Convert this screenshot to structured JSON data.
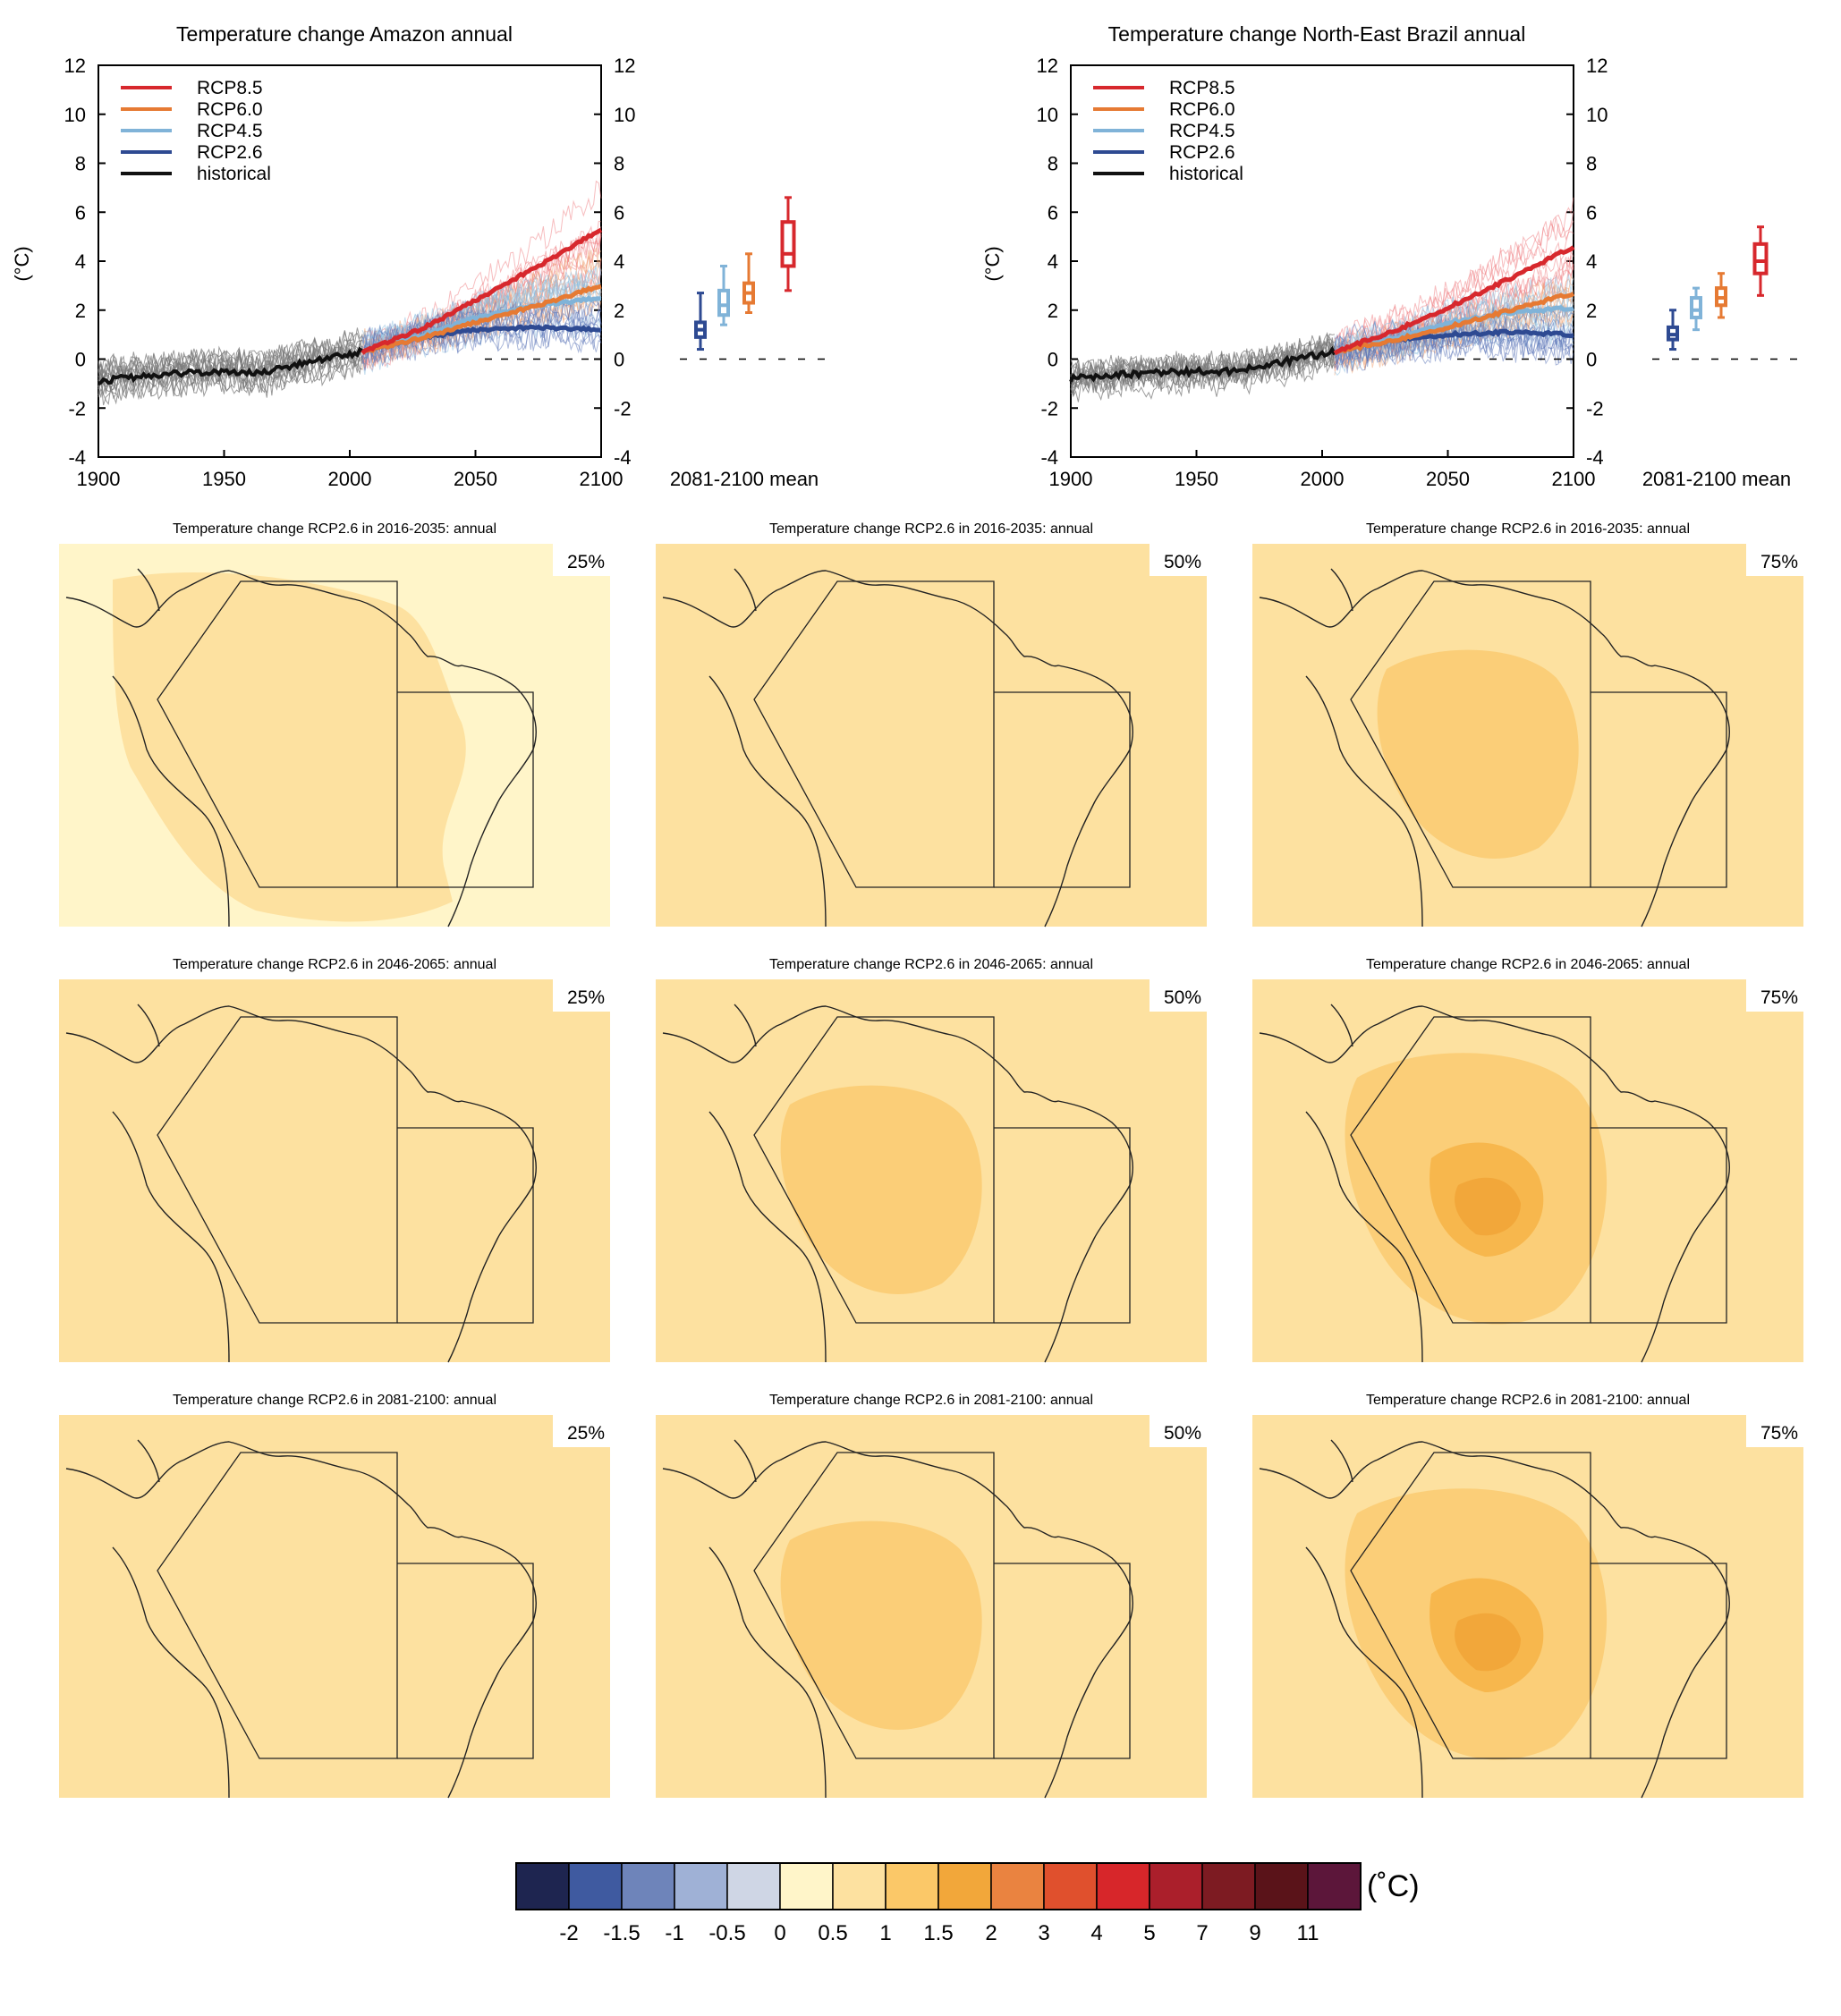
{
  "colors": {
    "rcp85": "#d7282d",
    "rcp60": "#e67a33",
    "rcp45": "#80b3d8",
    "rcp26": "#2e4a92",
    "historical": "#111111",
    "ensemble_hist": "#7a7a7a",
    "ocean_light": "#fff5c9",
    "land_light": "#fde1a0",
    "mid": "#fbce78",
    "high": "#f7b74d",
    "higher": "#f2a73a"
  },
  "panels": [
    {
      "title": "Temperature change Amazon annual",
      "ylabel": "(°C)",
      "yticks": [
        12,
        10,
        8,
        6,
        4,
        2,
        0,
        -2,
        -4
      ],
      "xticks": [
        1900,
        1950,
        2000,
        2050,
        2100
      ],
      "boxlabel": "2081-2100 mean",
      "legend": [
        "RCP8.5",
        "RCP6.0",
        "RCP4.5",
        "RCP2.6",
        "historical"
      ]
    },
    {
      "title": "Temperature change North-East Brazil annual",
      "ylabel": "(°C)",
      "yticks": [
        12,
        10,
        8,
        6,
        4,
        2,
        0,
        -2,
        -4
      ],
      "xticks": [
        1900,
        1950,
        2000,
        2050,
        2100
      ],
      "boxlabel": "2081-2100 mean",
      "legend": [
        "RCP8.5",
        "RCP6.0",
        "RCP4.5",
        "RCP2.6",
        "historical"
      ]
    }
  ],
  "chart_data": [
    {
      "type": "line",
      "title": "Temperature change Amazon annual",
      "ylabel": "(°C)",
      "xlim": [
        1900,
        2100
      ],
      "ylim": [
        -4,
        12
      ],
      "series": [
        {
          "name": "historical",
          "x": [
            1900,
            1925,
            1950,
            1965,
            1975,
            1990,
            2005
          ],
          "values": [
            -0.9,
            -0.6,
            -0.5,
            -0.6,
            -0.3,
            0.0,
            0.3
          ]
        },
        {
          "name": "RCP2.6",
          "x": [
            2005,
            2030,
            2050,
            2075,
            2100
          ],
          "values": [
            0.3,
            0.9,
            1.2,
            1.3,
            1.2
          ]
        },
        {
          "name": "RCP4.5",
          "x": [
            2005,
            2030,
            2050,
            2075,
            2100
          ],
          "values": [
            0.3,
            1.0,
            1.7,
            2.2,
            2.5
          ]
        },
        {
          "name": "RCP6.0",
          "x": [
            2005,
            2030,
            2050,
            2075,
            2100
          ],
          "values": [
            0.3,
            0.9,
            1.5,
            2.2,
            3.0
          ]
        },
        {
          "name": "RCP8.5",
          "x": [
            2005,
            2030,
            2050,
            2075,
            2100
          ],
          "values": [
            0.3,
            1.3,
            2.4,
            3.8,
            5.3
          ]
        }
      ],
      "boxes": {
        "label": "2081-2100 mean",
        "entries": [
          {
            "name": "RCP2.6",
            "min": 0.4,
            "q1": 0.9,
            "median": 1.2,
            "q3": 1.5,
            "max": 2.7
          },
          {
            "name": "RCP4.5",
            "min": 1.4,
            "q1": 1.8,
            "median": 2.2,
            "q3": 2.8,
            "max": 3.8
          },
          {
            "name": "RCP6.0",
            "min": 1.9,
            "q1": 2.3,
            "median": 2.7,
            "q3": 3.1,
            "max": 4.3
          },
          {
            "name": "RCP8.5",
            "min": 2.8,
            "q1": 3.8,
            "median": 4.3,
            "q3": 5.6,
            "max": 6.6
          }
        ]
      }
    },
    {
      "type": "line",
      "title": "Temperature change North-East Brazil annual",
      "ylabel": "(°C)",
      "xlim": [
        1900,
        2100
      ],
      "ylim": [
        -4,
        12
      ],
      "series": [
        {
          "name": "historical",
          "x": [
            1900,
            1925,
            1950,
            1965,
            1975,
            1990,
            2005
          ],
          "values": [
            -0.8,
            -0.6,
            -0.5,
            -0.5,
            -0.3,
            0.0,
            0.3
          ]
        },
        {
          "name": "RCP2.6",
          "x": [
            2005,
            2030,
            2050,
            2075,
            2100
          ],
          "values": [
            0.3,
            0.8,
            1.0,
            1.1,
            1.0
          ]
        },
        {
          "name": "RCP4.5",
          "x": [
            2005,
            2030,
            2050,
            2075,
            2100
          ],
          "values": [
            0.3,
            0.9,
            1.5,
            1.9,
            2.1
          ]
        },
        {
          "name": "RCP6.0",
          "x": [
            2005,
            2030,
            2050,
            2075,
            2100
          ],
          "values": [
            0.3,
            0.8,
            1.3,
            2.0,
            2.7
          ]
        },
        {
          "name": "RCP8.5",
          "x": [
            2005,
            2030,
            2050,
            2075,
            2100
          ],
          "values": [
            0.3,
            1.2,
            2.1,
            3.3,
            4.6
          ]
        }
      ],
      "boxes": {
        "label": "2081-2100 mean",
        "entries": [
          {
            "name": "RCP2.6",
            "min": 0.4,
            "q1": 0.8,
            "median": 1.0,
            "q3": 1.3,
            "max": 2.0
          },
          {
            "name": "RCP4.5",
            "min": 1.2,
            "q1": 1.7,
            "median": 2.0,
            "q3": 2.5,
            "max": 2.9
          },
          {
            "name": "RCP6.0",
            "min": 1.7,
            "q1": 2.2,
            "median": 2.5,
            "q3": 2.9,
            "max": 3.5
          },
          {
            "name": "RCP8.5",
            "min": 2.6,
            "q1": 3.5,
            "median": 4.0,
            "q3": 4.7,
            "max": 5.4
          }
        ]
      }
    }
  ],
  "maps": [
    {
      "title": "Temperature change RCP2.6 in 2016-2035: annual",
      "percentile": "25%",
      "level": 0
    },
    {
      "title": "Temperature change RCP2.6 in 2016-2035: annual",
      "percentile": "50%",
      "level": 1
    },
    {
      "title": "Temperature change RCP2.6 in 2016-2035: annual",
      "percentile": "75%",
      "level": 2
    },
    {
      "title": "Temperature change RCP2.6 in 2046-2065: annual",
      "percentile": "25%",
      "level": 1
    },
    {
      "title": "Temperature change RCP2.6 in 2046-2065: annual",
      "percentile": "50%",
      "level": 2
    },
    {
      "title": "Temperature change RCP2.6 in 2046-2065: annual",
      "percentile": "75%",
      "level": 3
    },
    {
      "title": "Temperature change RCP2.6 in 2081-2100: annual",
      "percentile": "25%",
      "level": 1
    },
    {
      "title": "Temperature change RCP2.6 in 2081-2100: annual",
      "percentile": "50%",
      "level": 2
    },
    {
      "title": "Temperature change RCP2.6 in 2081-2100: annual",
      "percentile": "75%",
      "level": 3
    }
  ],
  "colorbar": {
    "unit": "(˚C)",
    "labels": [
      "-2",
      "-1.5",
      "-1",
      "-0.5",
      "0",
      "0.5",
      "1",
      "1.5",
      "2",
      "3",
      "4",
      "5",
      "7",
      "9",
      "11"
    ],
    "colors": [
      "#1e2550",
      "#3f5aa0",
      "#6e84ba",
      "#9fb1d6",
      "#cfd6e5",
      "#fff5c9",
      "#fde1a0",
      "#fbc868",
      "#f2a73a",
      "#ea8340",
      "#e0502d",
      "#d7262a",
      "#ab1f2b",
      "#7d1b22",
      "#5a1319",
      "#5c163a"
    ]
  }
}
